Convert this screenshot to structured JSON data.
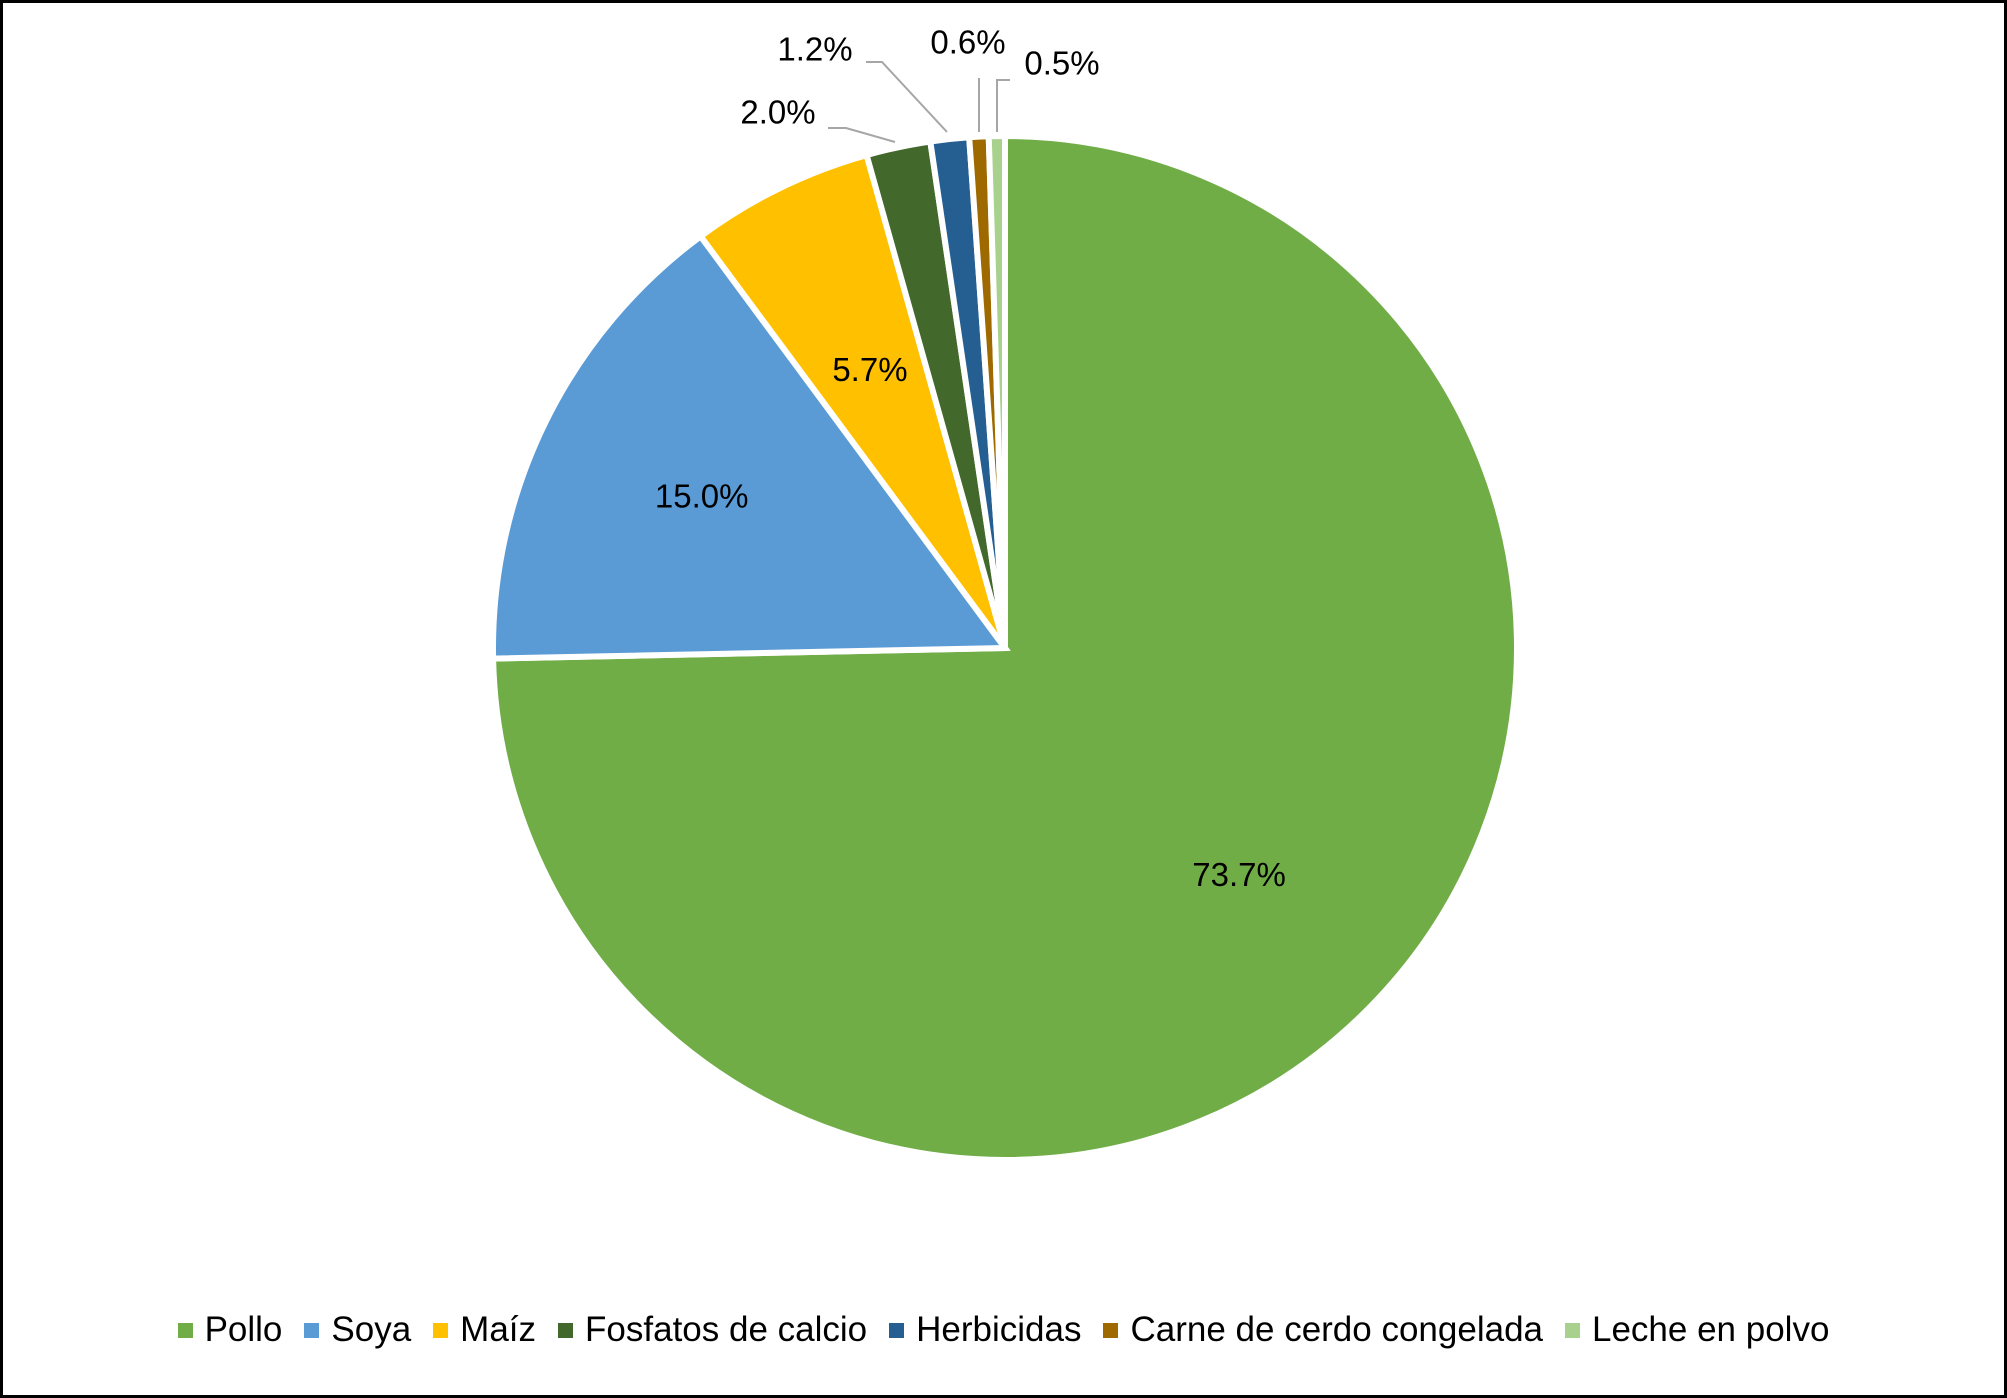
{
  "chart_data": {
    "type": "pie",
    "title": "",
    "categories": [
      "Pollo",
      "Soya",
      "Maíz",
      "Fosfatos de calcio",
      "Herbicidas",
      "Carne de cerdo congelada",
      "Leche en polvo"
    ],
    "values": [
      73.7,
      15.0,
      5.7,
      2.0,
      1.2,
      0.6,
      0.5
    ],
    "labels": [
      "73.7%",
      "15.0%",
      "5.7%",
      "2.0%",
      "1.2%",
      "0.6%",
      "0.5%"
    ],
    "colors": [
      "#70AD47",
      "#5B9BD5",
      "#FFC000",
      "#43682B",
      "#255E91",
      "#9E6A00",
      "#A9D18E"
    ],
    "start_angle": "12 o'clock",
    "direction": "clockwise",
    "legend_position": "bottom"
  }
}
